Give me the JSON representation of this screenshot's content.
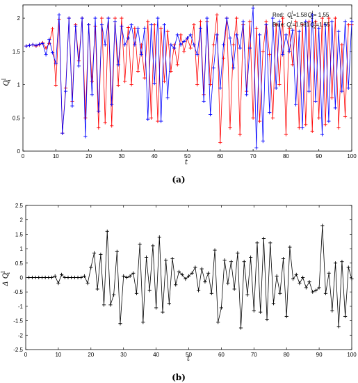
{
  "chart_data": [
    {
      "type": "line",
      "panel_label": "(a)",
      "xlabel": "t",
      "ylabel": "Q",
      "ylabel_sub": "i",
      "ylabel_sup": "I",
      "xlim": [
        0,
        100
      ],
      "ylim": [
        0,
        2.2
      ],
      "xticks": [
        0,
        10,
        20,
        30,
        40,
        50,
        60,
        70,
        80,
        90,
        100
      ],
      "yticks": [
        0,
        0.5,
        1,
        1.5,
        2
      ],
      "grid": false,
      "legend_position": "top-right",
      "legend": [
        {
          "prefix": "Red: ",
          "q1": "Q",
          "q1_sub": "1",
          "q1_sup": "I",
          "q1_value": "=1.58",
          "q2": "Q",
          "q2_sub": "2",
          "q2_sup": "I",
          "q2_value": "= 1.55"
        },
        {
          "prefix": "Blue:",
          "q1": "Q",
          "q1_sub": "1",
          "q1_sup": "I",
          "q1_value": "=1.581",
          "q2": "Q",
          "q2_sub": "2",
          "q2_sup": "I",
          "q2_value": "=1.55"
        }
      ],
      "colors": [
        "#ff0000",
        "#0000ff"
      ],
      "x": [
        1,
        2,
        3,
        4,
        5,
        6,
        7,
        8,
        9,
        10,
        11,
        12,
        13,
        14,
        15,
        16,
        17,
        18,
        19,
        20,
        21,
        22,
        23,
        24,
        25,
        26,
        27,
        28,
        29,
        30,
        31,
        32,
        33,
        34,
        35,
        36,
        37,
        38,
        39,
        40,
        41,
        42,
        43,
        44,
        45,
        46,
        47,
        48,
        49,
        50,
        51,
        52,
        53,
        54,
        55,
        56,
        57,
        58,
        59,
        60,
        61,
        62,
        63,
        64,
        65,
        66,
        67,
        68,
        69,
        70,
        71,
        72,
        73,
        74,
        75,
        76,
        77,
        78,
        79,
        80,
        81,
        82,
        83,
        84,
        85,
        86,
        87,
        88,
        89,
        90,
        91,
        92,
        93,
        94,
        95,
        96,
        97,
        98,
        99,
        100
      ],
      "series": [
        {
          "marker": "+",
          "values": [
            1.58,
            1.59,
            1.6,
            1.58,
            1.6,
            1.63,
            1.55,
            1.62,
            1.84,
            0.99,
            1.98,
            0.27,
            0.95,
            2.0,
            0.75,
            1.9,
            1.36,
            2.0,
            0.5,
            1.9,
            1.05,
            1.88,
            0.35,
            2.0,
            0.43,
            2.0,
            0.38,
            2.0,
            0.99,
            2.0,
            1.05,
            1.86,
            1.0,
            1.85,
            1.2,
            1.6,
            1.1,
            1.95,
            0.5,
            1.9,
            0.45,
            1.85,
            1.05,
            1.8,
            1.2,
            1.6,
            1.3,
            1.75,
            1.5,
            1.7,
            1.55,
            1.9,
            1.0,
            1.95,
            0.85,
            1.95,
            1.0,
            1.6,
            2.05,
            0.13,
            1.4,
            2.0,
            0.35,
            1.6,
            2.0,
            0.25,
            1.9,
            0.9,
            1.95,
            0.5,
            1.85,
            0.45,
            1.5,
            1.95,
            1.45,
            0.5,
            1.9,
            1.0,
            2.0,
            0.25,
            1.85,
            1.3,
            1.95,
            0.35,
            1.9,
            0.4,
            1.95,
            0.3,
            1.95,
            0.5,
            2.0,
            0.4,
            2.0,
            0.8,
            2.0,
            0.35,
            1.6,
            0.52,
            1.9,
            1.9
          ]
        },
        {
          "marker": "+",
          "values": [
            1.58,
            1.59,
            1.6,
            1.59,
            1.61,
            1.62,
            1.45,
            1.68,
            1.48,
            1.32,
            2.05,
            0.27,
            0.9,
            2.0,
            0.68,
            1.88,
            1.28,
            2.0,
            0.22,
            1.9,
            0.85,
            2.0,
            0.6,
            1.9,
            1.6,
            2.0,
            0.7,
            1.95,
            1.3,
            1.88,
            1.6,
            1.7,
            1.9,
            1.6,
            1.85,
            1.45,
            1.85,
            0.48,
            1.9,
            1.02,
            2.0,
            0.45,
            1.9,
            0.8,
            1.6,
            1.55,
            1.75,
            1.6,
            1.65,
            1.7,
            1.75,
            1.6,
            1.45,
            1.85,
            0.75,
            2.0,
            0.55,
            1.25,
            1.75,
            0.95,
            1.6,
            2.0,
            1.7,
            1.25,
            1.75,
            1.55,
            1.95,
            0.85,
            1.55,
            2.15,
            0.05,
            1.75,
            0.15,
            1.9,
            0.58,
            2.0,
            0.95,
            1.95,
            1.45,
            1.75,
            1.5,
            1.82,
            0.7,
            1.8,
            0.35,
            1.95,
            0.9,
            2.05,
            0.75,
            1.85,
            0.25,
            1.9,
            0.45,
            1.95,
            0.65,
            1.8,
            0.9,
            1.95,
            0.95,
            1.95
          ]
        }
      ]
    },
    {
      "type": "line",
      "panel_label": "(b)",
      "xlabel": "t",
      "ylabel": "Δ Q",
      "ylabel_sub": "i",
      "ylabel_sup": "I",
      "xlim": [
        0,
        100
      ],
      "ylim": [
        -2.5,
        2.5
      ],
      "xticks": [
        0,
        10,
        20,
        30,
        40,
        50,
        60,
        70,
        80,
        90,
        100
      ],
      "yticks": [
        -2.5,
        -2,
        -1.5,
        -1,
        -0.5,
        0,
        0.5,
        1,
        1.5,
        2,
        2.5
      ],
      "ytick_labels": [
        "-2.5",
        "-2",
        "-1.5",
        "-1",
        "-0.5",
        "0",
        "0.5",
        "1",
        "1.5",
        "2",
        "2.5"
      ],
      "grid": false,
      "series": [
        {
          "color": "#000000",
          "marker": "+",
          "values": [
            0,
            0,
            0,
            0,
            0,
            0,
            0,
            0,
            0.05,
            -0.2,
            0.1,
            0,
            0,
            0,
            0,
            0,
            0,
            0.05,
            -0.2,
            0.35,
            0.85,
            -0.4,
            0.8,
            -0.95,
            1.6,
            -0.95,
            -0.6,
            0.9,
            -1.6,
            0.05,
            0,
            0.05,
            0.15,
            -0.55,
            1.15,
            -1.55,
            0.7,
            -0.45,
            1.1,
            -1.05,
            1.4,
            -1.2,
            0.6,
            -0.9,
            0.65,
            -0.25,
            0.2,
            0.1,
            -0.05,
            0.05,
            0.15,
            0.35,
            -0.45,
            0.3,
            -0.15,
            0.15,
            -0.55,
            0.95,
            -1.55,
            -1.05,
            0.6,
            -0.2,
            0.55,
            -0.4,
            0.85,
            -1.75,
            0.55,
            -0.6,
            0.7,
            -1.15,
            1.2,
            -1.2,
            1.35,
            -1.45,
            1.2,
            -0.9,
            0.05,
            -0.55,
            0.65,
            -1.35,
            1.05,
            -0.05,
            0.1,
            -0.2,
            0,
            -0.35,
            -0.15,
            -0.5,
            -0.45,
            -0.35,
            1.8,
            -0.55,
            0.15,
            -1.15,
            0.5,
            -1.7,
            0.55,
            -1.35,
            0.35,
            -0.05
          ]
        }
      ]
    }
  ]
}
